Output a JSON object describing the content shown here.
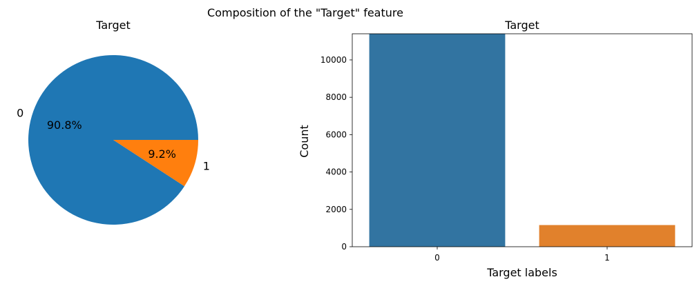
{
  "figure": {
    "suptitle": "Composition of the \"Target\" feature"
  },
  "chart_data": [
    {
      "type": "pie",
      "title": "Target",
      "labels": [
        "0",
        "1"
      ],
      "values": [
        90.8,
        9.2
      ],
      "value_labels": [
        "90.8%",
        "9.2%"
      ],
      "colors": [
        "#1f77b4",
        "#ff7f0e"
      ]
    },
    {
      "type": "bar",
      "title": "Target",
      "categories": [
        "0",
        "1"
      ],
      "values": [
        11400,
        1160
      ],
      "colors": [
        "#3274a1",
        "#e1812c"
      ],
      "xlabel": "Target labels",
      "ylabel": "Count",
      "ylim": [
        0,
        11400
      ],
      "yticks": [
        0,
        2000,
        4000,
        6000,
        8000,
        10000
      ],
      "grid": false
    }
  ]
}
